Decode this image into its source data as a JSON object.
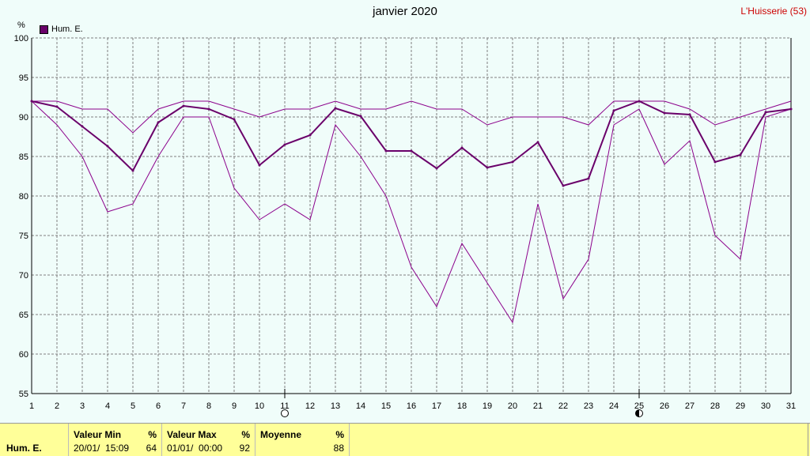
{
  "header": {
    "title": "janvier 2020",
    "station": "L'Huisserie (53)",
    "unit": "%"
  },
  "legend": {
    "label": "Hum. E.",
    "color": "#6a006a"
  },
  "chart_data": {
    "type": "line",
    "title": "janvier 2020",
    "ylabel": "%",
    "xlim": [
      1,
      31
    ],
    "ylim": [
      55,
      100
    ],
    "x_ticks": [
      1,
      2,
      3,
      4,
      5,
      6,
      7,
      8,
      9,
      10,
      11,
      12,
      13,
      14,
      15,
      16,
      17,
      18,
      19,
      20,
      21,
      22,
      23,
      24,
      25,
      26,
      27,
      28,
      29,
      30,
      31
    ],
    "y_ticks": [
      55,
      60,
      65,
      70,
      75,
      80,
      85,
      90,
      95,
      100
    ],
    "grid": true,
    "x": [
      1,
      2,
      3,
      4,
      5,
      6,
      7,
      8,
      9,
      10,
      11,
      12,
      13,
      14,
      15,
      16,
      17,
      18,
      19,
      20,
      21,
      22,
      23,
      24,
      25,
      26,
      27,
      28,
      29,
      30,
      31
    ],
    "series": [
      {
        "name": "Hum. E.",
        "role": "mean",
        "color": "#6a006a",
        "values": [
          92,
          91.3,
          88.8,
          86.3,
          83.2,
          89.3,
          91.4,
          91,
          89.7,
          83.9,
          86.5,
          87.7,
          91.1,
          90.1,
          85.7,
          85.7,
          83.5,
          86.1,
          83.6,
          84.3,
          86.8,
          81.3,
          82.2,
          90.8,
          92,
          90.5,
          90.3,
          84.3,
          85.2,
          90.6,
          91
        ]
      },
      {
        "role": "max",
        "color": "#8b008b",
        "values": [
          92,
          92,
          91,
          91,
          88,
          91,
          92,
          92,
          91,
          90,
          91,
          91,
          92,
          91,
          91,
          92,
          91,
          91,
          89,
          90,
          90,
          90,
          89,
          92,
          92,
          92,
          91,
          89,
          90,
          91,
          92
        ]
      },
      {
        "role": "min",
        "color": "#8b008b",
        "values": [
          92,
          89,
          85,
          78,
          79,
          85,
          90,
          90,
          81,
          77,
          79,
          77,
          89,
          85,
          80,
          71,
          66,
          74,
          69,
          64,
          79,
          67,
          72,
          89,
          91,
          84,
          87,
          75,
          72,
          90,
          91
        ]
      }
    ],
    "markers": [
      {
        "day": 11,
        "symbol": "open-circle"
      },
      {
        "day": 25,
        "symbol": "half-filled-circle"
      }
    ]
  },
  "stats": {
    "row_label": "Hum. E.",
    "min": {
      "header": "Valeur Min",
      "unit": "%",
      "date": "20/01/  15:09",
      "value": "64"
    },
    "max": {
      "header": "Valeur Max",
      "unit": "%",
      "date": "01/01/  00:00",
      "value": "92"
    },
    "mean": {
      "header": "Moyenne",
      "unit": "%",
      "value": "88"
    }
  }
}
